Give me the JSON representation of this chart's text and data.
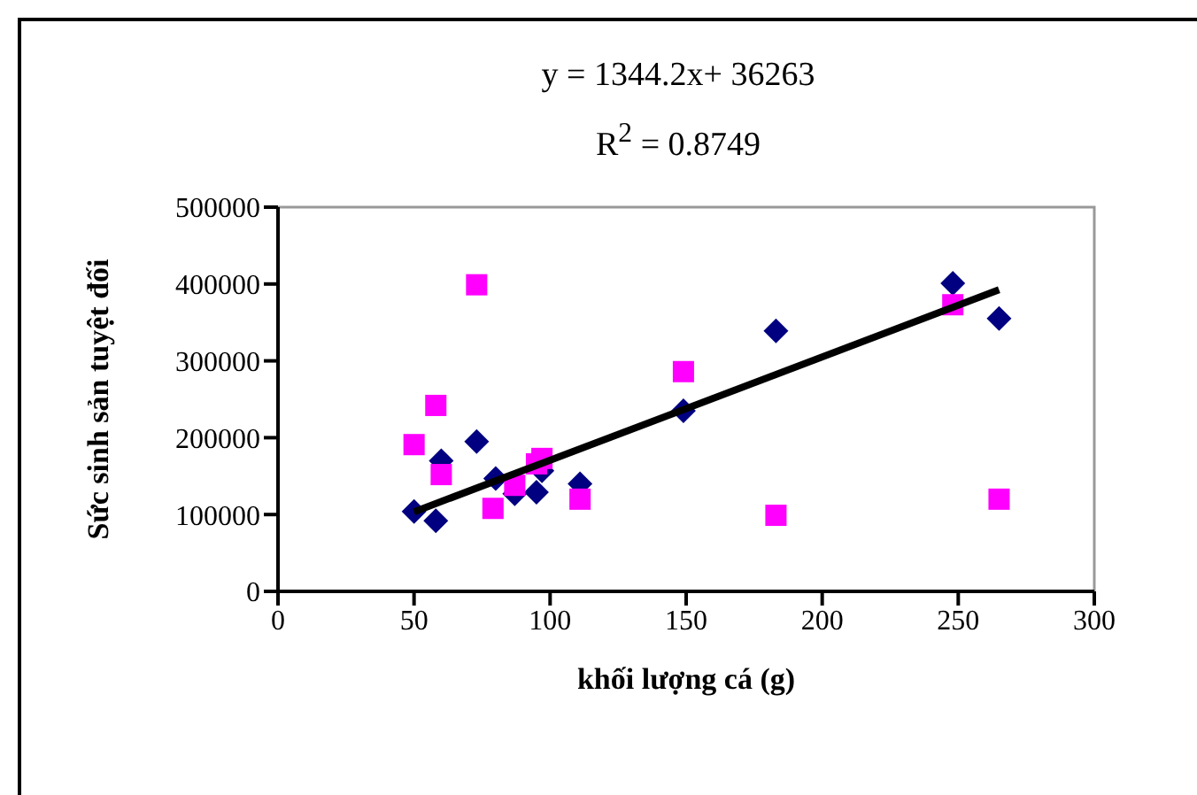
{
  "chart_data": {
    "type": "scatter",
    "xlabel": "khối lượng cá (g)",
    "ylabel": "Sức sinh sản tuyệt đối",
    "annotations": [
      "y = 1344.2x+ 36263",
      "R$^{2}$ = 0.8749"
    ],
    "xlim": [
      0,
      300
    ],
    "xticks": [
      0,
      50,
      100,
      150,
      200,
      250,
      300
    ],
    "ylim": [
      0,
      500000
    ],
    "yticks": [
      0,
      100000,
      200000,
      300000,
      400000,
      500000
    ],
    "series": [
      {
        "color": "#000080",
        "marker": "diamond",
        "x": [
          50,
          58,
          60,
          73,
          80,
          87,
          95,
          97,
          111,
          149,
          183,
          248,
          265
        ],
        "values": [
          104000,
          92000,
          170000,
          195000,
          147000,
          127000,
          129000,
          157000,
          140000,
          235000,
          339000,
          401000,
          355000
        ]
      },
      {
        "color": "#ff00ff",
        "marker": "square",
        "x": [
          50,
          58,
          60,
          73,
          79,
          87,
          95,
          97,
          111,
          149,
          183,
          248,
          265
        ],
        "values": [
          191000,
          242000,
          152000,
          399000,
          108000,
          138000,
          166000,
          173000,
          120000,
          286000,
          99000,
          373000,
          120000
        ]
      },
      {
        "type": "line",
        "color": "#000000",
        "marker": "none",
        "x": [
          50,
          265
        ],
        "values": [
          103500,
          392500
        ]
      }
    ]
  }
}
